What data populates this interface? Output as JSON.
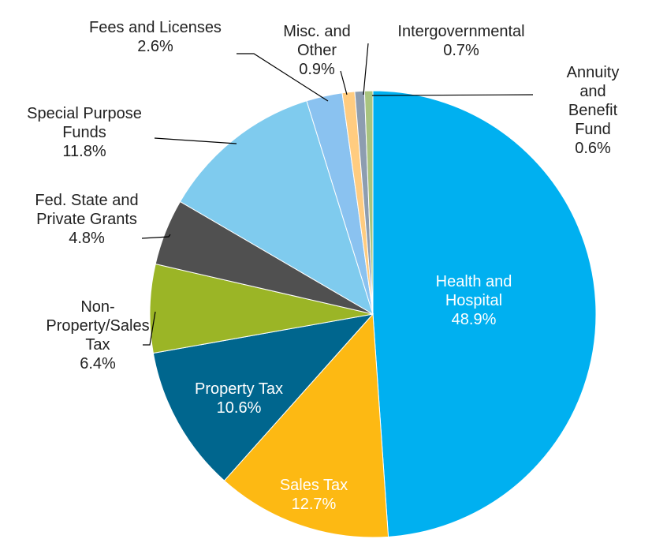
{
  "chart_data": {
    "type": "pie",
    "categories": [
      "Health and\nHospital",
      "Sales Tax",
      "Property Tax",
      "Non-\nProperty/Sales\nTax",
      "Fed. State and\nPrivate Grants",
      "Special Purpose\nFunds",
      "Fees and Licenses",
      "Misc. and\nOther",
      "Intergovernmental",
      "Annuity and\nBenefit Fund"
    ],
    "values": [
      48.9,
      12.7,
      10.6,
      6.4,
      4.8,
      11.8,
      2.6,
      0.9,
      0.7,
      0.6
    ],
    "value_labels": [
      "48.9%",
      "12.7%",
      "10.6%",
      "6.4%",
      "4.8%",
      "11.8%",
      "2.6%",
      "0.9%",
      "0.7%",
      "0.6%"
    ],
    "colors": [
      "#00b0f0",
      "#fdb913",
      "#00668e",
      "#9bb526",
      "#505050",
      "#7fcbee",
      "#8ac2f0",
      "#ffcc80",
      "#8d9db0",
      "#a9c47f"
    ]
  }
}
